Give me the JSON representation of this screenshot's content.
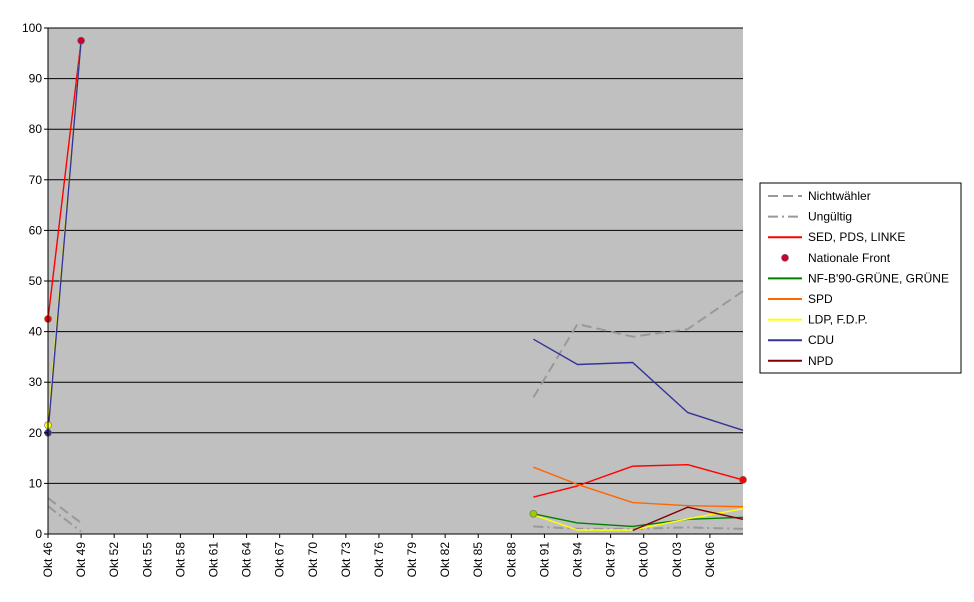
{
  "chart_data": {
    "type": "line",
    "title": "",
    "xlabel": "",
    "ylabel": "",
    "ylim": [
      0,
      100
    ],
    "yticks": [
      0,
      10,
      20,
      30,
      40,
      50,
      60,
      70,
      80,
      90,
      100
    ],
    "grid": "horizontal",
    "legend_position": "right",
    "plot_background": "#C0C0C0",
    "categories": [
      "Okt 46",
      "Okt 49",
      "Okt 52",
      "Okt 55",
      "Okt 58",
      "Okt 61",
      "Okt 64",
      "Okt 67",
      "Okt 70",
      "Okt 73",
      "Okt 76",
      "Okt 79",
      "Okt 82",
      "Okt 85",
      "Okt 88",
      "Okt 91",
      "Okt 94",
      "Okt 97",
      "Okt 00",
      "Okt 03",
      "Okt 06"
    ],
    "x_range": [
      "Okt 46",
      "Okt 09"
    ],
    "series": [
      {
        "name": "Nichtwähler",
        "color": "#999999",
        "style": "dash",
        "points": [
          [
            "Okt 46",
            7.1
          ],
          [
            "Okt 49",
            2.2
          ],
          [
            "Okt 90",
            27.0
          ],
          [
            "Okt 94",
            41.5
          ],
          [
            "Okt 99",
            39.0
          ],
          [
            "Okt 04",
            40.5
          ],
          [
            "Okt 09",
            48.0
          ]
        ]
      },
      {
        "name": "Ungültig",
        "color": "#999999",
        "style": "dashdot",
        "points": [
          [
            "Okt 46",
            5.5
          ],
          [
            "Okt 49",
            0.5
          ],
          [
            "Okt 90",
            1.5
          ],
          [
            "Okt 94",
            1.0
          ],
          [
            "Okt 99",
            1.0
          ],
          [
            "Okt 04",
            1.3
          ],
          [
            "Okt 09",
            1.0
          ]
        ]
      },
      {
        "name": "SED, PDS, LINKE",
        "color": "#FF0000",
        "style": "solid",
        "points": [
          [
            "Okt 46",
            42.5
          ],
          [
            "Okt 49",
            97.5
          ],
          [
            "Okt 90",
            7.3
          ],
          [
            "Okt 94",
            9.5
          ],
          [
            "Okt 99",
            13.4
          ],
          [
            "Okt 04",
            13.7
          ],
          [
            "Okt 09",
            10.7
          ]
        ]
      },
      {
        "name": "Nationale Front",
        "color": "#CC0033",
        "style": "marker",
        "points": [
          [
            "Okt 49",
            97.5
          ]
        ]
      },
      {
        "name": "NF-B'90-GRÜNE, GRÜNE",
        "color": "#008000",
        "style": "solid",
        "points": [
          [
            "Okt 90",
            4.0
          ],
          [
            "Okt 94",
            2.2
          ],
          [
            "Okt 99",
            1.5
          ],
          [
            "Okt 04",
            2.9
          ],
          [
            "Okt 09",
            3.3
          ]
        ]
      },
      {
        "name": "SPD",
        "color": "#FF6600",
        "style": "solid",
        "points": [
          [
            "Okt 90",
            13.2
          ],
          [
            "Okt 94",
            9.8
          ],
          [
            "Okt 99",
            6.2
          ],
          [
            "Okt 04",
            5.6
          ],
          [
            "Okt 09",
            5.4
          ]
        ]
      },
      {
        "name": "LDP, F.D.P.",
        "color": "#FFFF00",
        "style": "solid",
        "points": [
          [
            "Okt 46",
            21.5
          ],
          [
            "Okt 49",
            97.5
          ],
          [
            "Okt 90",
            3.8
          ],
          [
            "Okt 94",
            0.8
          ],
          [
            "Okt 99",
            0.8
          ],
          [
            "Okt 04",
            3.0
          ],
          [
            "Okt 09",
            5.0
          ]
        ]
      },
      {
        "name": "CDU",
        "color": "#333399",
        "style": "solid",
        "points": [
          [
            "Okt 46",
            20.0
          ],
          [
            "Okt 49",
            97.5
          ],
          [
            "Okt 90",
            38.5
          ],
          [
            "Okt 94",
            33.5
          ],
          [
            "Okt 99",
            33.9
          ],
          [
            "Okt 04",
            24.0
          ],
          [
            "Okt 09",
            20.5
          ]
        ]
      },
      {
        "name": "NPD",
        "color": "#800000",
        "style": "solid",
        "points": [
          [
            "Okt 99",
            0.7
          ],
          [
            "Okt 04",
            5.3
          ],
          [
            "Okt 09",
            2.9
          ]
        ]
      }
    ]
  }
}
